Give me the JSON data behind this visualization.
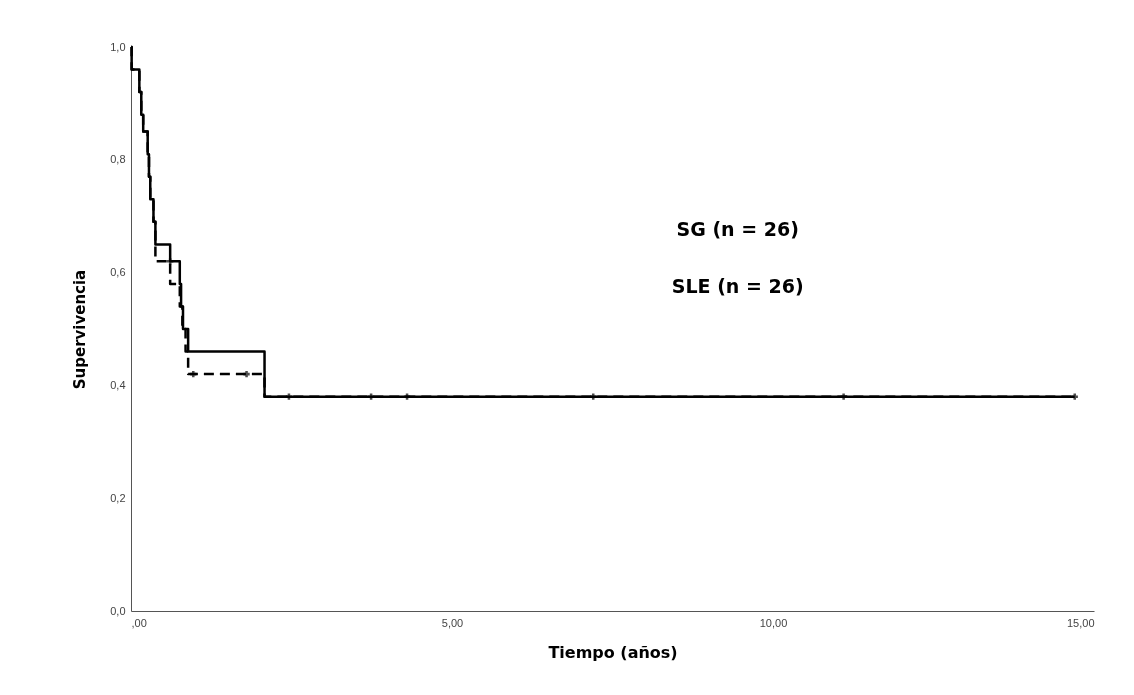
{
  "chart_data": {
    "type": "step",
    "xlabel": "Tiempo (años)",
    "ylabel": "Supervivencia",
    "annotations": [
      "SG (n = 26)",
      "SLE (n = 26)"
    ],
    "xlim": [
      0,
      15
    ],
    "ylim": [
      0,
      1
    ],
    "xticks": [
      {
        "value": 0,
        "label": ",00"
      },
      {
        "value": 5,
        "label": "5,00"
      },
      {
        "value": 10,
        "label": "10,00"
      },
      {
        "value": 15,
        "label": "15,00"
      }
    ],
    "yticks": [
      {
        "value": 0,
        "label": "0,0"
      },
      {
        "value": 0.2,
        "label": "0,2"
      },
      {
        "value": 0.4,
        "label": "0,4"
      },
      {
        "value": 0.6,
        "label": "0,6"
      },
      {
        "value": 0.8,
        "label": "0,8"
      },
      {
        "value": 1,
        "label": "1,0"
      }
    ],
    "series": [
      {
        "line_style": "dashed",
        "color": "#000000",
        "x": [
          0,
          0.01,
          0.13,
          0.16,
          0.19,
          0.26,
          0.28,
          0.3,
          0.35,
          0.38,
          0.61,
          0.76,
          0.8,
          0.85,
          0.89,
          2.08,
          14.7
        ],
        "values": [
          1.0,
          0.96,
          0.92,
          0.88,
          0.85,
          0.81,
          0.77,
          0.73,
          0.69,
          0.62,
          0.58,
          0.54,
          0.5,
          0.46,
          0.42,
          0.38,
          0.38
        ]
      },
      {
        "line_style": "solid",
        "color": "#000000",
        "x": [
          0,
          0.01,
          0.13,
          0.16,
          0.19,
          0.26,
          0.28,
          0.3,
          0.35,
          0.38,
          0.61,
          0.76,
          0.78,
          0.81,
          0.89,
          2.08,
          14.7
        ],
        "values": [
          1.0,
          0.96,
          0.92,
          0.88,
          0.85,
          0.81,
          0.77,
          0.73,
          0.69,
          0.65,
          0.62,
          0.58,
          0.54,
          0.5,
          0.46,
          0.38,
          0.38
        ]
      },
      {
        "type": "scatter",
        "marker": "cross",
        "color": "#000000",
        "x": [
          0.61,
          0.97,
          1.8
        ],
        "values": [
          0.62,
          0.42,
          0.42
        ]
      },
      {
        "type": "scatter",
        "marker": "cross",
        "color": "#000000",
        "x": [
          2.46,
          3.74,
          4.3,
          7.2,
          11.1,
          14.7
        ],
        "values": [
          0.38,
          0.38,
          0.38,
          0.38,
          0.38,
          0.38
        ]
      }
    ]
  }
}
